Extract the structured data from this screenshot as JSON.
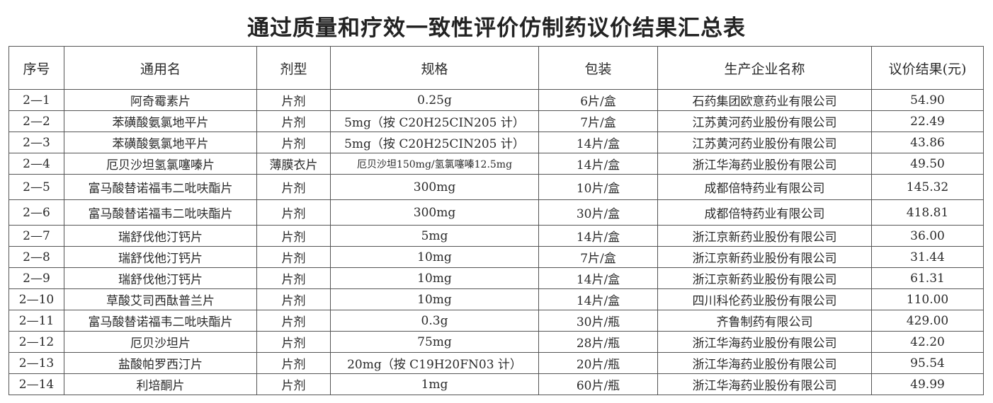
{
  "title": "通过质量和疗效一致性评价仿制药议价结果汇总表",
  "headers": [
    "序号",
    "通用名",
    "剂型",
    "规格",
    "包装",
    "生产企业名称",
    "议价结果(元)"
  ],
  "rows": [
    [
      "2—1",
      "阿奇霉素片",
      "片剂",
      "0.25g",
      "6片/盒",
      "石药集团欧意药业有限公司",
      "54.90"
    ],
    [
      "2—2",
      "苯磺酸氨氯地平片",
      "片剂",
      "5mg（按 C20H25CIN205 计）",
      "7片/盒",
      "江苏黄河药业股份有限公司",
      "22.49"
    ],
    [
      "2—3",
      "苯磺酸氨氯地平片",
      "片剂",
      "5mg（按 C20H25CIN205 计）",
      "14片/盒",
      "江苏黄河药业股份有限公司",
      "43.86"
    ],
    [
      "2—4",
      "厄贝沙坦氢氯噻嗪片",
      "薄膜衣片",
      "厄贝沙坦150mg/氢氯噻嗪12.5mg",
      "14片/盒",
      "浙江华海药业股份有限公司",
      "49.50"
    ],
    [
      "2—5",
      "富马酸替诺福韦二吡呋酯片",
      "片剂",
      "300mg",
      "10片/盒",
      "成都倍特药业有限公司",
      "145.32"
    ],
    [
      "2—6",
      "富马酸替诺福韦二吡呋酯片",
      "片剂",
      "300mg",
      "30片/盒",
      "成都倍特药业有限公司",
      "418.81"
    ],
    [
      "2—7",
      "瑞舒伐他汀钙片",
      "片剂",
      "5mg",
      "14片/盒",
      "浙江京新药业股份有限公司",
      "36.00"
    ],
    [
      "2—8",
      "瑞舒伐他汀钙片",
      "片剂",
      "10mg",
      "7片/盒",
      "浙江京新药业股份有限公司",
      "31.44"
    ],
    [
      "2—9",
      "瑞舒伐他汀钙片",
      "片剂",
      "10mg",
      "14片/盒",
      "浙江京新药业股份有限公司",
      "61.31"
    ],
    [
      "2—10",
      "草酸艾司西酞普兰片",
      "片剂",
      "10mg",
      "14片/盒",
      "四川科伦药业股份有限公司",
      "110.00"
    ],
    [
      "2—11",
      "富马酸替诺福韦二吡呋酯片",
      "片剂",
      "0.3g",
      "30片/瓶",
      "齐鲁制药有限公司",
      "429.00"
    ],
    [
      "2—12",
      "厄贝沙坦片",
      "片剂",
      "75mg",
      "28片/瓶",
      "浙江华海药业股份有限公司",
      "42.20"
    ],
    [
      "2—13",
      "盐酸帕罗西汀片",
      "片剂",
      "20mg（按 C19H20FN03 计）",
      "20片/瓶",
      "浙江华海药业股份有限公司",
      "95.54"
    ],
    [
      "2—14",
      "利培酮片",
      "片剂",
      "1mg",
      "60片/瓶",
      "浙江华海药业股份有限公司",
      "49.99"
    ]
  ]
}
